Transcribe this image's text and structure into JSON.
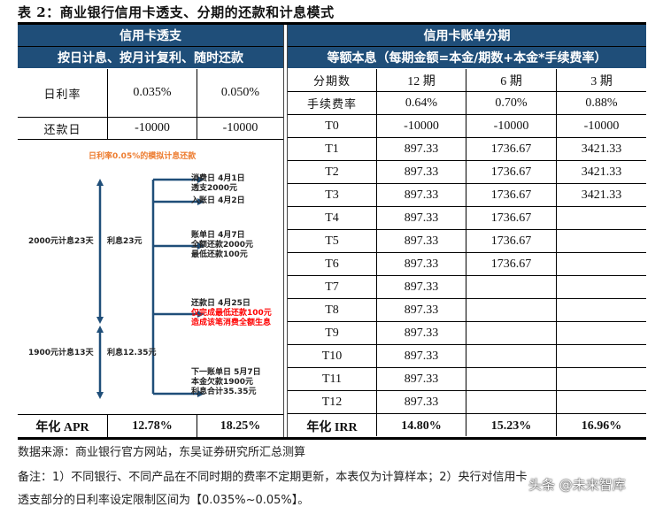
{
  "title": "表 2：商业银行信用卡透支、分期的还款和计息模式",
  "left_table": {
    "header": "信用卡透支",
    "subheader": "按日计息、按月计复利、随时还款",
    "rows": [
      {
        "label": "日利率",
        "values": [
          "0.035%",
          "0.050%"
        ]
      },
      {
        "label": "还款日",
        "values": [
          "-10000",
          "-10000"
        ]
      }
    ],
    "footer": {
      "label": "年化 APR",
      "values": [
        "12.78%",
        "18.25%"
      ]
    }
  },
  "diagram": {
    "title": "日利率0.05%的模拟计息还款",
    "left_labels": [
      {
        "days": "2000元计息23天",
        "interest": "利息23元"
      },
      {
        "days": "1900元计息13天",
        "interest": "利息12.35元"
      }
    ],
    "events": [
      {
        "lines": [
          "消费日  4月1日",
          "透支2000元"
        ]
      },
      {
        "lines": [
          "入账日  4月2日"
        ]
      },
      {
        "lines": [
          "账单日  4月7日",
          "全额还款2000元",
          "最低还款100元"
        ]
      },
      {
        "lines": [
          "还款日  4月25日"
        ],
        "red_lines": [
          "仅完成最低还款100元",
          "造成该笔消费全额生息"
        ]
      },
      {
        "lines": [
          "下一账单日  5月7日",
          "本金欠款1900元",
          "利息合计35.35元"
        ]
      }
    ],
    "colors": {
      "arrow": "#1f4e79",
      "title": "#ed7d31",
      "warning": "#ff0000"
    }
  },
  "right_table": {
    "header": "信用卡账单分期",
    "subheader": "等额本息（每期金额=本金/期数+本金*手续费率）",
    "columns_label": "分期数",
    "columns": [
      "12 期",
      "6 期",
      "3 期"
    ],
    "fee_label": "手续费率",
    "fees": [
      "0.64%",
      "0.70%",
      "0.88%"
    ],
    "rows": [
      {
        "t": "T0",
        "values": [
          "-10000",
          "-10000",
          "-10000"
        ]
      },
      {
        "t": "T1",
        "values": [
          "897.33",
          "1736.67",
          "3421.33"
        ]
      },
      {
        "t": "T2",
        "values": [
          "897.33",
          "1736.67",
          "3421.33"
        ]
      },
      {
        "t": "T3",
        "values": [
          "897.33",
          "1736.67",
          "3421.33"
        ]
      },
      {
        "t": "T4",
        "values": [
          "897.33",
          "1736.67",
          ""
        ]
      },
      {
        "t": "T5",
        "values": [
          "897.33",
          "1736.67",
          ""
        ]
      },
      {
        "t": "T6",
        "values": [
          "897.33",
          "1736.67",
          ""
        ]
      },
      {
        "t": "T7",
        "values": [
          "897.33",
          "",
          ""
        ]
      },
      {
        "t": "T8",
        "values": [
          "897.33",
          "",
          ""
        ]
      },
      {
        "t": "T9",
        "values": [
          "897.33",
          "",
          ""
        ]
      },
      {
        "t": "T10",
        "values": [
          "897.33",
          "",
          ""
        ]
      },
      {
        "t": "T11",
        "values": [
          "897.33",
          "",
          ""
        ]
      },
      {
        "t": "T12",
        "values": [
          "897.33",
          "",
          ""
        ]
      }
    ],
    "footer": {
      "label": "年化 IRR",
      "values": [
        "14.80%",
        "15.23%",
        "16.96%"
      ]
    }
  },
  "notes": {
    "source": "数据来源：商业银行官方网站，东吴证券研究所汇总测算",
    "remark_line1": "备注：1）不同银行、不同产品在不同时期的费率不定期更新，本表仅为计算样本；2）央行对信用卡",
    "remark_line2": "透支部分的日利率设定限制区间为【0.035%~0.05%】。"
  },
  "watermark": "头条 @未来智库",
  "colors": {
    "header_bg": "#1f4e79",
    "header_text": "#ffffff"
  }
}
